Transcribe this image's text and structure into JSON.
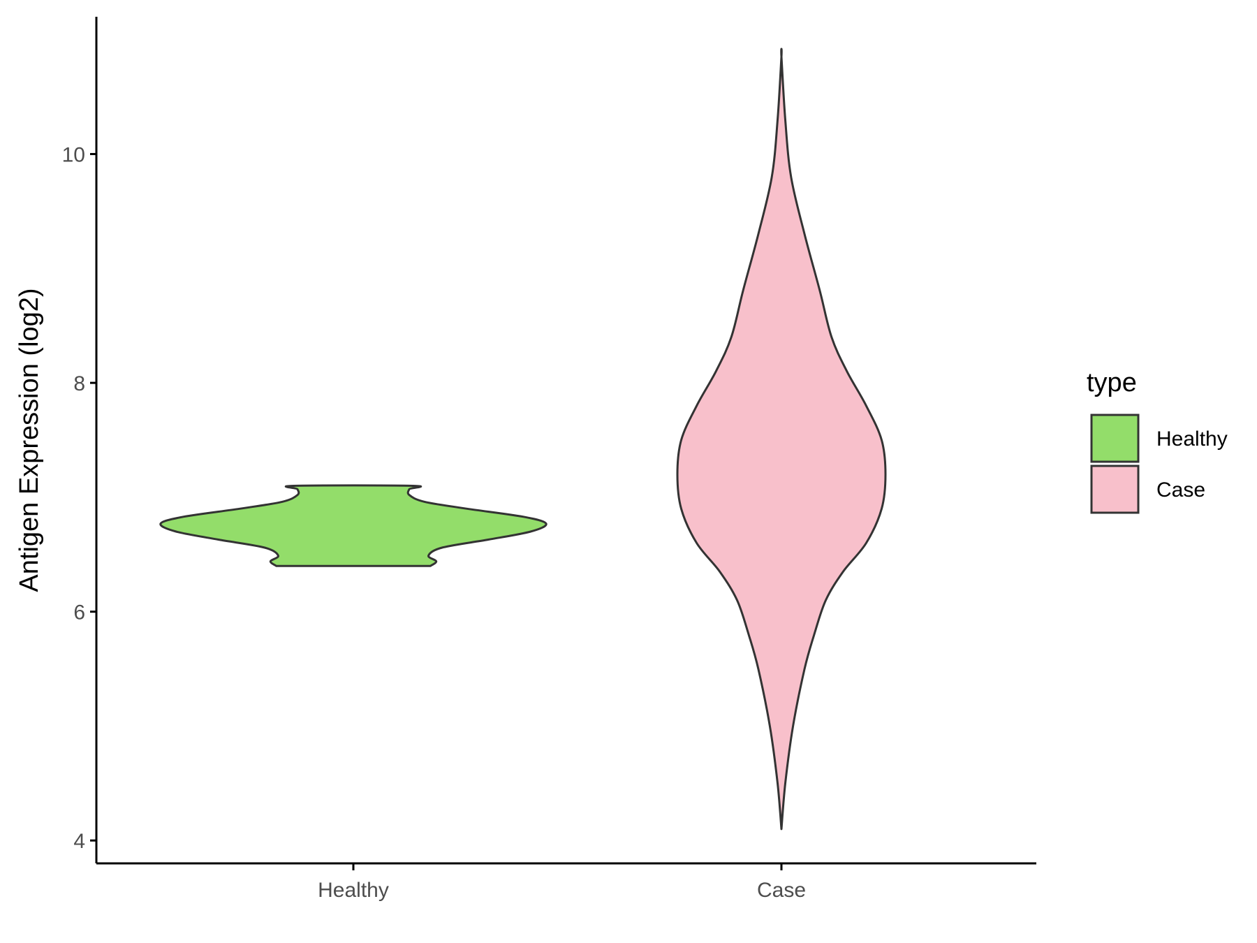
{
  "chart_data": {
    "type": "violin",
    "title": "",
    "xlabel": "",
    "ylabel": "Antigen Expression (log2)",
    "ylim": [
      3.8,
      11.2
    ],
    "yticks": [
      4,
      6,
      8,
      10
    ],
    "grid": false,
    "legend": {
      "title": "type",
      "position": "right",
      "entries": [
        {
          "label": "Healthy",
          "color": "#93DD6A"
        },
        {
          "label": "Case",
          "color": "#F8C0CB"
        }
      ]
    },
    "categories": [
      "Healthy",
      "Case"
    ],
    "series": [
      {
        "name": "Healthy",
        "color": "#93DD6A",
        "min": 6.4,
        "max": 7.1,
        "density": [
          {
            "y": 6.4,
            "w": 0.4
          },
          {
            "y": 6.44,
            "w": 0.43
          },
          {
            "y": 6.49,
            "w": 0.39
          },
          {
            "y": 6.56,
            "w": 0.46
          },
          {
            "y": 6.63,
            "w": 0.7
          },
          {
            "y": 6.7,
            "w": 0.92
          },
          {
            "y": 6.77,
            "w": 1.0
          },
          {
            "y": 6.83,
            "w": 0.88
          },
          {
            "y": 6.9,
            "w": 0.59
          },
          {
            "y": 6.96,
            "w": 0.37
          },
          {
            "y": 7.02,
            "w": 0.29
          },
          {
            "y": 7.07,
            "w": 0.29
          },
          {
            "y": 7.1,
            "w": 0.31
          }
        ]
      },
      {
        "name": "Case",
        "color": "#F8C0CB",
        "min": 4.1,
        "max": 10.85,
        "density": [
          {
            "y": 4.1,
            "w": 0.0
          },
          {
            "y": 4.5,
            "w": 0.02
          },
          {
            "y": 5.0,
            "w": 0.06
          },
          {
            "y": 5.5,
            "w": 0.12
          },
          {
            "y": 5.8,
            "w": 0.17
          },
          {
            "y": 6.1,
            "w": 0.23
          },
          {
            "y": 6.35,
            "w": 0.32
          },
          {
            "y": 6.6,
            "w": 0.44
          },
          {
            "y": 6.9,
            "w": 0.52
          },
          {
            "y": 7.2,
            "w": 0.54
          },
          {
            "y": 7.5,
            "w": 0.52
          },
          {
            "y": 7.8,
            "w": 0.44
          },
          {
            "y": 8.1,
            "w": 0.34
          },
          {
            "y": 8.4,
            "w": 0.26
          },
          {
            "y": 8.8,
            "w": 0.2
          },
          {
            "y": 9.3,
            "w": 0.12
          },
          {
            "y": 9.8,
            "w": 0.05
          },
          {
            "y": 10.3,
            "w": 0.02
          },
          {
            "y": 10.85,
            "w": 0.0
          }
        ]
      }
    ]
  }
}
